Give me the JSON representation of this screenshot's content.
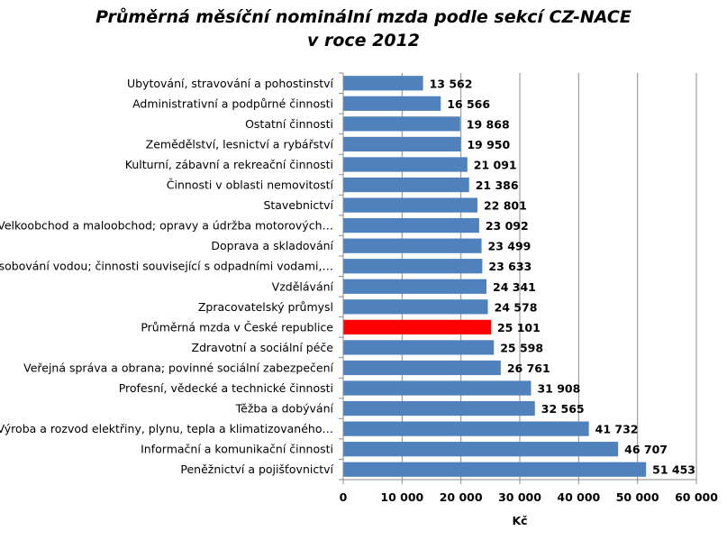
{
  "chart_data": {
    "type": "bar",
    "orientation": "horizontal",
    "title": [
      "Průměrná měsíční nominální mzda podle sekcí CZ-NACE",
      "v roce 2012"
    ],
    "xlabel": "Kč",
    "ylabel": "",
    "xlim": [
      0,
      60000
    ],
    "ticks": [
      0,
      10000,
      20000,
      30000,
      40000,
      50000,
      60000
    ],
    "tick_labels": [
      "0",
      "10 000",
      "20 000",
      "30 000",
      "40 000",
      "50 000",
      "60 000"
    ],
    "grid": true,
    "bar_color": "#4F81BD",
    "highlight_color": "#FF0000",
    "categories": [
      "Ubytování, stravování a pohostinství",
      "Administrativní a podpůrné činnosti",
      "Ostatní činnosti",
      "Zemědělství, lesnictví a rybářství",
      "Kulturní, zábavní a rekreační činnosti",
      "Činnosti v oblasti nemovitostí",
      "Stavebnictví",
      "Velkoobchod a maloobchod; opravy a údržba motorových…",
      "Doprava a skladování",
      "Zásobování vodou; činnosti související s odpadními vodami,…",
      "Vzdělávání",
      "Zpracovatelský průmysl",
      "Průměrná mzda v České republice",
      "Zdravotní a sociální péče",
      "Veřejná správa a obrana; povinné sociální zabezpečení",
      "Profesní, vědecké a technické činnosti",
      "Těžba a dobývání",
      "Výroba a rozvod elektřiny, plynu, tepla a klimatizovaného…",
      "Informační a komunikační činnosti",
      "Peněžnictví a pojišťovnictví"
    ],
    "values": [
      13562,
      16566,
      19868,
      19950,
      21091,
      21386,
      22801,
      23092,
      23499,
      23633,
      24341,
      24578,
      25101,
      25598,
      26761,
      31908,
      32565,
      41732,
      46707,
      51453
    ],
    "value_labels": [
      "13 562",
      "16 566",
      "19 868",
      "19 950",
      "21 091",
      "21 386",
      "22 801",
      "23 092",
      "23 499",
      "23 633",
      "24 341",
      "24 578",
      "25 101",
      "25 598",
      "26 761",
      "31 908",
      "32 565",
      "41 732",
      "46 707",
      "51 453"
    ],
    "highlight_index": 12
  }
}
